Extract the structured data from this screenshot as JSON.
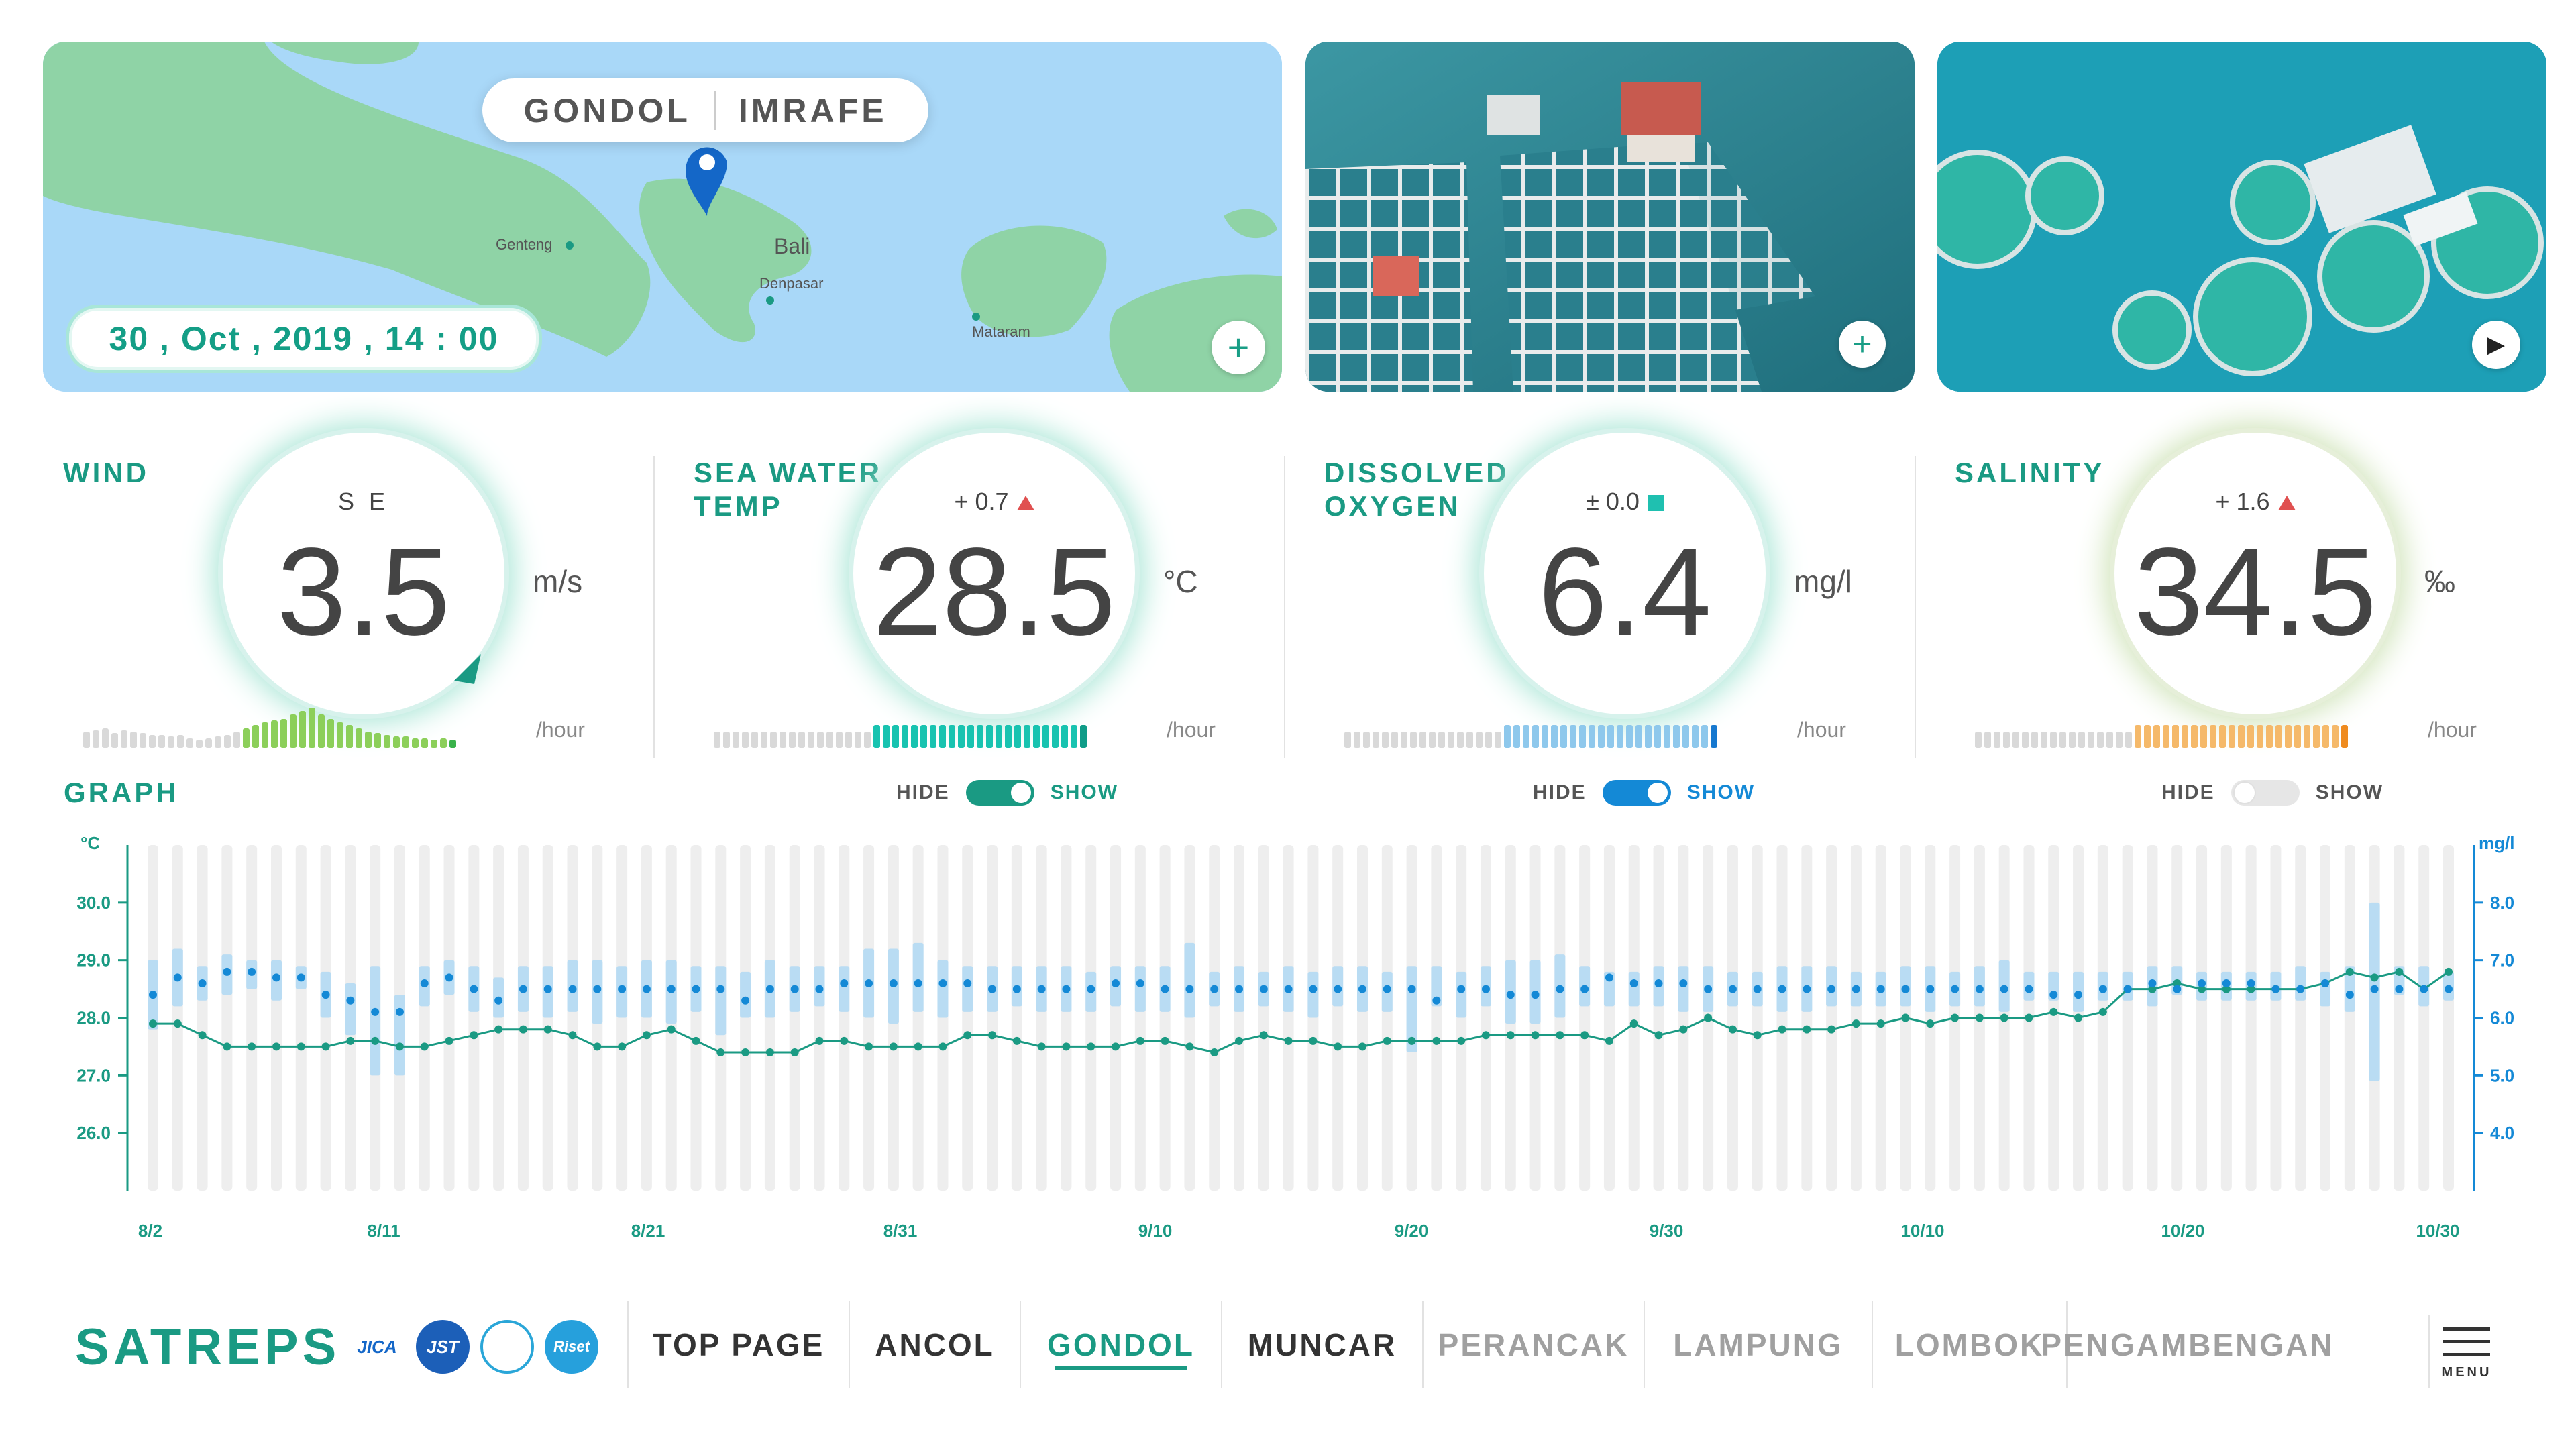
{
  "location": {
    "left": "GONDOL",
    "right": "IMRAFE"
  },
  "datetime": "30 , Oct , 2019 , 14 : 00",
  "map_labels": {
    "genteng": "Genteng",
    "bali": "Bali",
    "denpasar": "Denpasar",
    "mataram": "Mataram"
  },
  "buttons": {
    "plus": "+",
    "play": "▶"
  },
  "gauges": [
    {
      "title": "WIND",
      "sub": "S E",
      "value": "3.5",
      "unit": "m/s",
      "per": "/hour",
      "color": "#8ccf5a",
      "bars": [
        10,
        11,
        12,
        9,
        11,
        10,
        9,
        8,
        8,
        7,
        8,
        6,
        5,
        6,
        7,
        8,
        10,
        12,
        14,
        16,
        17,
        18,
        21,
        23,
        25,
        21,
        18,
        16,
        14,
        12,
        10,
        9,
        8,
        7,
        7,
        6,
        6,
        5,
        6,
        5
      ],
      "highlight_from": 17
    },
    {
      "title_line1": "SEA WATER",
      "title_line2": "TEMP",
      "sub": "+ 0.7",
      "value": "28.5",
      "unit": "°C",
      "per": "/hour",
      "color": "#18c3b0"
    },
    {
      "title_line1": "DISSOLVED",
      "title_line2": "OXYGEN",
      "sub": "± 0.0",
      "value": "6.4",
      "unit": "mg/l",
      "per": "/hour",
      "color": "#8ec8ec"
    },
    {
      "title": "SALINITY",
      "sub": "+ 1.6",
      "value": "34.5",
      "unit": "‰",
      "per": "/hour",
      "color": "#f5b96a"
    }
  ],
  "graph": {
    "title": "GRAPH",
    "toggles": [
      {
        "hide": "HIDE",
        "show": "SHOW",
        "on": true,
        "color": "#1a9a83"
      },
      {
        "hide": "HIDE",
        "show": "SHOW",
        "on": true,
        "color": "#1489d6"
      },
      {
        "hide": "HIDE",
        "show": "SHOW",
        "on": false,
        "color": "#dddddd"
      }
    ]
  },
  "chart_data": {
    "type": "line",
    "y_left_label": "°C",
    "y_right_label": "mg/l",
    "y_left_ticks": [
      "30.0",
      "29.0",
      "28.0",
      "27.0",
      "26.0"
    ],
    "y_right_ticks": [
      "8.0",
      "7.0",
      "6.0",
      "5.0",
      "4.0"
    ],
    "ylim_left": [
      25,
      31
    ],
    "ylim_right": [
      3,
      9
    ],
    "x_ticks": [
      "8/2",
      "8/11",
      "8/21",
      "8/31",
      "9/10",
      "9/20",
      "9/30",
      "10/10",
      "10/20",
      "10/30"
    ],
    "temperature": [
      27.9,
      27.9,
      27.7,
      27.5,
      27.5,
      27.5,
      27.5,
      27.5,
      27.6,
      27.6,
      27.5,
      27.5,
      27.6,
      27.7,
      27.8,
      27.8,
      27.8,
      27.7,
      27.5,
      27.5,
      27.7,
      27.8,
      27.6,
      27.4,
      27.4,
      27.4,
      27.4,
      27.6,
      27.6,
      27.5,
      27.5,
      27.5,
      27.5,
      27.7,
      27.7,
      27.6,
      27.5,
      27.5,
      27.5,
      27.5,
      27.6,
      27.6,
      27.5,
      27.4,
      27.6,
      27.7,
      27.6,
      27.6,
      27.5,
      27.5,
      27.6,
      27.6,
      27.6,
      27.6,
      27.7,
      27.7,
      27.7,
      27.7,
      27.7,
      27.6,
      27.9,
      27.7,
      27.8,
      28.0,
      27.8,
      27.7,
      27.8,
      27.8,
      27.8,
      27.9,
      27.9,
      28.0,
      27.9,
      28.0,
      28.0,
      28.0,
      28.0,
      28.1,
      28.0,
      28.1,
      28.5,
      28.5,
      28.6,
      28.5,
      28.5,
      28.5,
      28.5,
      28.5,
      28.6,
      28.8,
      28.7,
      28.8,
      28.5,
      28.8
    ],
    "oxygen": [
      6.4,
      6.7,
      6.6,
      6.8,
      6.8,
      6.7,
      6.7,
      6.4,
      6.3,
      6.1,
      6.1,
      6.6,
      6.7,
      6.5,
      6.3,
      6.5,
      6.5,
      6.5,
      6.5,
      6.5,
      6.5,
      6.5,
      6.5,
      6.5,
      6.3,
      6.5,
      6.5,
      6.5,
      6.6,
      6.6,
      6.6,
      6.6,
      6.6,
      6.6,
      6.5,
      6.5,
      6.5,
      6.5,
      6.5,
      6.6,
      6.6,
      6.5,
      6.5,
      6.5,
      6.5,
      6.5,
      6.5,
      6.5,
      6.5,
      6.5,
      6.5,
      6.5,
      6.3,
      6.5,
      6.5,
      6.4,
      6.4,
      6.5,
      6.5,
      6.7,
      6.6,
      6.6,
      6.6,
      6.5,
      6.5,
      6.5,
      6.5,
      6.5,
      6.5,
      6.5,
      6.5,
      6.5,
      6.5,
      6.5,
      6.5,
      6.5,
      6.5,
      6.4,
      6.4,
      6.5,
      6.5,
      6.6,
      6.5,
      6.6,
      6.6,
      6.6,
      6.5,
      6.5,
      6.6,
      6.4,
      6.5,
      6.5,
      6.5,
      6.5
    ],
    "oxygen_range": [
      [
        5.8,
        7.0
      ],
      [
        6.2,
        7.2
      ],
      [
        6.3,
        6.9
      ],
      [
        6.4,
        7.1
      ],
      [
        6.5,
        7.0
      ],
      [
        6.3,
        7.0
      ],
      [
        6.5,
        6.9
      ],
      [
        6.0,
        6.8
      ],
      [
        5.7,
        6.6
      ],
      [
        5.0,
        6.9
      ],
      [
        5.0,
        6.4
      ],
      [
        6.2,
        6.9
      ],
      [
        6.4,
        7.0
      ],
      [
        6.1,
        6.9
      ],
      [
        6.0,
        6.7
      ],
      [
        6.1,
        6.9
      ],
      [
        6.0,
        6.9
      ],
      [
        6.1,
        7.0
      ],
      [
        5.9,
        7.0
      ],
      [
        6.0,
        6.9
      ],
      [
        6.0,
        7.0
      ],
      [
        5.9,
        7.0
      ],
      [
        6.1,
        6.9
      ],
      [
        5.7,
        6.9
      ],
      [
        6.0,
        6.8
      ],
      [
        6.0,
        7.0
      ],
      [
        6.1,
        6.9
      ],
      [
        6.2,
        6.9
      ],
      [
        6.1,
        6.9
      ],
      [
        6.0,
        7.2
      ],
      [
        5.9,
        7.2
      ],
      [
        6.1,
        7.3
      ],
      [
        6.0,
        7.0
      ],
      [
        6.1,
        6.9
      ],
      [
        6.1,
        6.9
      ],
      [
        6.2,
        6.9
      ],
      [
        6.1,
        6.9
      ],
      [
        6.1,
        6.9
      ],
      [
        6.1,
        6.8
      ],
      [
        6.2,
        6.9
      ],
      [
        6.1,
        6.9
      ],
      [
        6.1,
        6.9
      ],
      [
        6.0,
        7.3
      ],
      [
        6.2,
        6.8
      ],
      [
        6.1,
        6.9
      ],
      [
        6.2,
        6.8
      ],
      [
        6.1,
        6.9
      ],
      [
        6.0,
        6.8
      ],
      [
        6.2,
        6.9
      ],
      [
        6.1,
        6.9
      ],
      [
        6.1,
        6.8
      ],
      [
        5.4,
        6.9
      ],
      [
        6.2,
        6.9
      ],
      [
        6.0,
        6.8
      ],
      [
        6.2,
        6.9
      ],
      [
        5.9,
        7.0
      ],
      [
        5.9,
        7.0
      ],
      [
        6.0,
        7.1
      ],
      [
        6.2,
        6.9
      ],
      [
        6.2,
        6.8
      ],
      [
        6.2,
        6.8
      ],
      [
        6.2,
        6.9
      ],
      [
        6.1,
        6.9
      ],
      [
        6.1,
        6.9
      ],
      [
        6.2,
        6.8
      ],
      [
        6.2,
        6.8
      ],
      [
        6.1,
        6.9
      ],
      [
        6.1,
        6.9
      ],
      [
        6.2,
        6.9
      ],
      [
        6.2,
        6.8
      ],
      [
        6.2,
        6.8
      ],
      [
        6.2,
        6.9
      ],
      [
        6.1,
        6.9
      ],
      [
        6.2,
        6.8
      ],
      [
        6.2,
        6.9
      ],
      [
        6.1,
        7.0
      ],
      [
        6.3,
        6.8
      ],
      [
        6.3,
        6.8
      ],
      [
        6.1,
        6.8
      ],
      [
        6.3,
        6.8
      ],
      [
        6.3,
        6.8
      ],
      [
        6.2,
        6.9
      ],
      [
        6.4,
        6.9
      ],
      [
        6.3,
        6.8
      ],
      [
        6.3,
        6.8
      ],
      [
        6.3,
        6.8
      ],
      [
        6.3,
        6.8
      ],
      [
        6.3,
        6.9
      ],
      [
        6.2,
        6.8
      ],
      [
        6.1,
        6.9
      ],
      [
        4.9,
        8.0
      ],
      [
        6.4,
        6.9
      ],
      [
        6.2,
        6.9
      ],
      [
        6.3,
        6.8
      ]
    ]
  },
  "footer": {
    "logo": "SATREPS",
    "partners": [
      "JICA",
      "JST",
      "",
      "Riset"
    ],
    "nav": [
      "TOP PAGE",
      "ANCOL",
      "GONDOL",
      "MUNCAR",
      "PERANCAK",
      "LAMPUNG",
      "LOMBOK",
      "PENGAMBENGAN"
    ],
    "active": "GONDOL",
    "menu_label": "MENU"
  }
}
